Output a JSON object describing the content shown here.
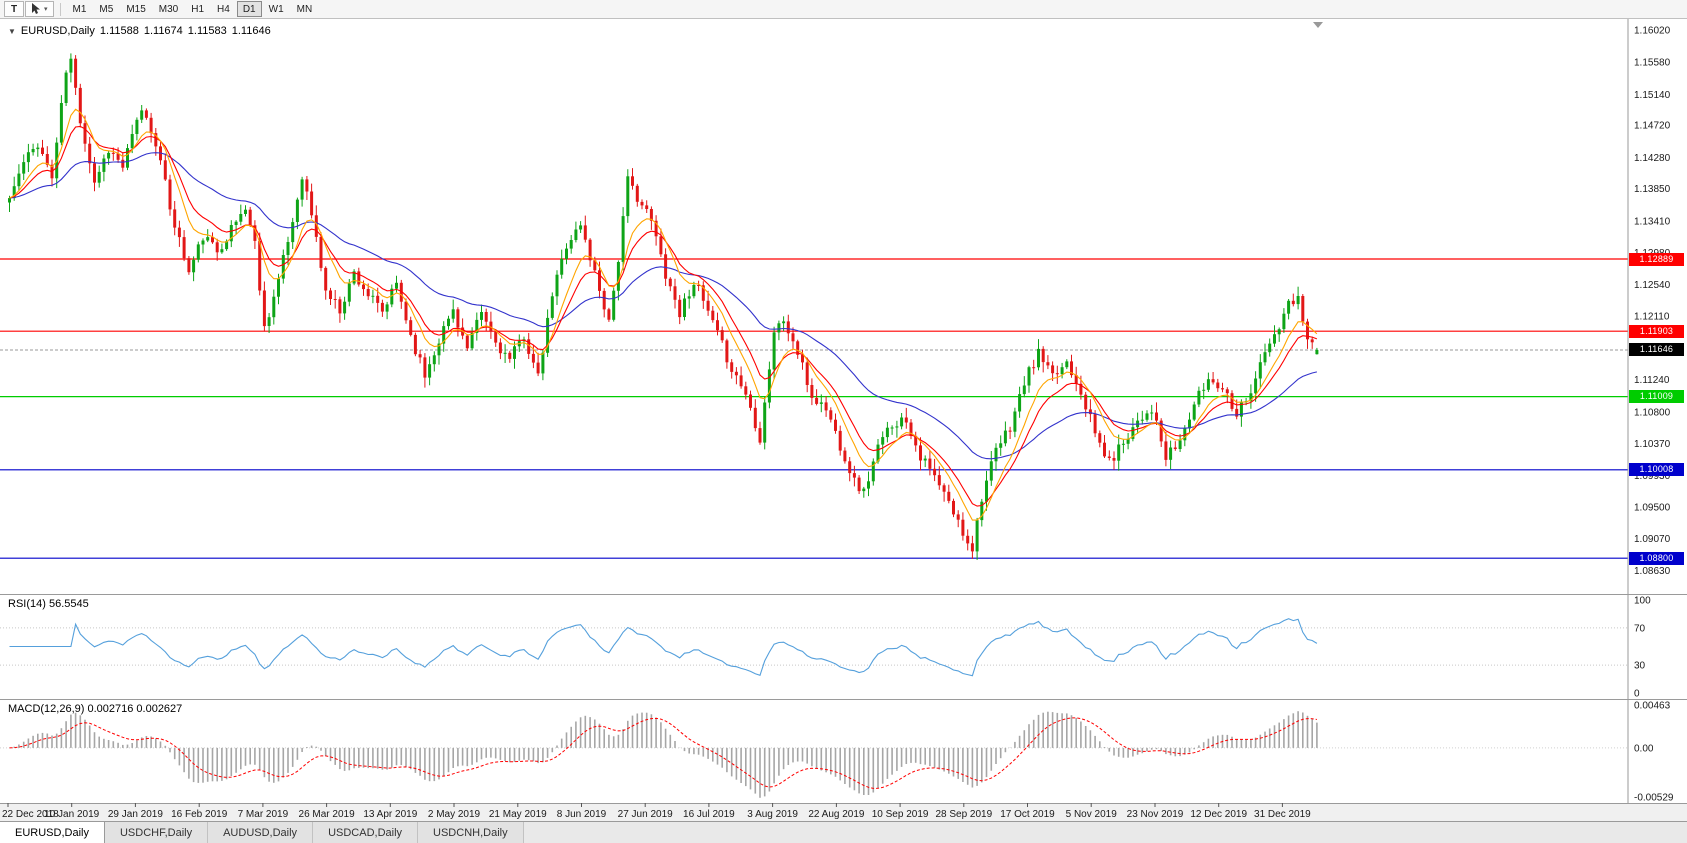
{
  "toolbar": {
    "text_tool": "T",
    "cursor_tool_caret": "▾",
    "timeframes": [
      "M1",
      "M5",
      "M15",
      "M30",
      "H1",
      "H4",
      "D1",
      "W1",
      "MN"
    ],
    "active_timeframe": "D1"
  },
  "chart": {
    "collapse_caret": "▼",
    "title": "EURUSD,Daily",
    "open": "1.11588",
    "high": "1.11674",
    "low": "1.11583",
    "close": "1.11646"
  },
  "rsi_panel": {
    "label": "RSI(14) 56.5545"
  },
  "macd_panel": {
    "label": "MACD(12,26,9) 0.002716 0.002627"
  },
  "chart_data": {
    "type": "candlestick",
    "symbol": "EURUSD",
    "period": "Daily",
    "bars_total": 278,
    "noise_seed": 11,
    "close_noise": 0.0008,
    "wick_noise": 0.0012,
    "candle_up_color": "#0ea417",
    "candle_down_color": "#e21717",
    "close_anchors": [
      [
        0,
        1.1372
      ],
      [
        3,
        1.142
      ],
      [
        6,
        1.1448
      ],
      [
        9,
        1.14
      ],
      [
        12,
        1.1545
      ],
      [
        13,
        1.156
      ],
      [
        15,
        1.148
      ],
      [
        18,
        1.1395
      ],
      [
        21,
        1.144
      ],
      [
        24,
        1.1415
      ],
      [
        28,
        1.1495
      ],
      [
        31,
        1.145
      ],
      [
        34,
        1.136
      ],
      [
        38,
        1.127
      ],
      [
        41,
        1.132
      ],
      [
        44,
        1.13
      ],
      [
        47,
        1.133
      ],
      [
        50,
        1.136
      ],
      [
        52,
        1.131
      ],
      [
        54,
        1.1195
      ],
      [
        57,
        1.126
      ],
      [
        60,
        1.134
      ],
      [
        62,
        1.1405
      ],
      [
        64,
        1.135
      ],
      [
        67,
        1.1245
      ],
      [
        70,
        1.122
      ],
      [
        73,
        1.127
      ],
      [
        76,
        1.124
      ],
      [
        79,
        1.1215
      ],
      [
        82,
        1.1255
      ],
      [
        85,
        1.1185
      ],
      [
        88,
        1.113
      ],
      [
        91,
        1.118
      ],
      [
        94,
        1.122
      ],
      [
        97,
        1.1165
      ],
      [
        100,
        1.1215
      ],
      [
        103,
        1.1175
      ],
      [
        106,
        1.115
      ],
      [
        109,
        1.1185
      ],
      [
        112,
        1.1125
      ],
      [
        115,
        1.124
      ],
      [
        118,
        1.131
      ],
      [
        121,
        1.1335
      ],
      [
        124,
        1.127
      ],
      [
        127,
        1.1205
      ],
      [
        129,
        1.129
      ],
      [
        131,
        1.1395
      ],
      [
        133,
        1.1375
      ],
      [
        136,
        1.134
      ],
      [
        139,
        1.127
      ],
      [
        142,
        1.1215
      ],
      [
        145,
        1.126
      ],
      [
        148,
        1.1215
      ],
      [
        151,
        1.117
      ],
      [
        153,
        1.114
      ],
      [
        156,
        1.1105
      ],
      [
        159,
        1.1045
      ],
      [
        162,
        1.119
      ],
      [
        164,
        1.1205
      ],
      [
        167,
        1.116
      ],
      [
        170,
        1.11
      ],
      [
        173,
        1.1085
      ],
      [
        176,
        1.1035
      ],
      [
        179,
        1.0985
      ],
      [
        181,
        1.097
      ],
      [
        184,
        1.103
      ],
      [
        187,
        1.1065
      ],
      [
        190,
        1.107
      ],
      [
        193,
        1.102
      ],
      [
        196,
        1.099
      ],
      [
        199,
        1.0955
      ],
      [
        202,
        1.0915
      ],
      [
        204,
        1.0895
      ],
      [
        206,
        1.0965
      ],
      [
        209,
        1.1025
      ],
      [
        212,
        1.106
      ],
      [
        215,
        1.112
      ],
      [
        218,
        1.116
      ],
      [
        221,
        1.1125
      ],
      [
        224,
        1.115
      ],
      [
        227,
        1.111
      ],
      [
        230,
        1.105
      ],
      [
        233,
        1.101
      ],
      [
        236,
        1.104
      ],
      [
        239,
        1.107
      ],
      [
        242,
        1.1085
      ],
      [
        245,
        1.1015
      ],
      [
        248,
        1.104
      ],
      [
        251,
        1.109
      ],
      [
        254,
        1.1125
      ],
      [
        257,
        1.1115
      ],
      [
        260,
        1.108
      ],
      [
        263,
        1.111
      ],
      [
        266,
        1.116
      ],
      [
        269,
        1.1195
      ],
      [
        271,
        1.1225
      ],
      [
        273,
        1.1235
      ],
      [
        275,
        1.1185
      ],
      [
        277,
        1.11646
      ]
    ],
    "spike_high": {
      "bar": 13,
      "price": 1.157
    },
    "spike_low": {
      "bar": 204,
      "price": 1.0879
    },
    "last_bar": {
      "open": 1.11588,
      "high": 1.11674,
      "low": 1.11583,
      "close": 1.11646
    },
    "moving_averages": [
      {
        "name": "slow-blue",
        "period": 40,
        "color": "#3333cc"
      },
      {
        "name": "medium-red",
        "period": 13,
        "color": "#ff0000"
      },
      {
        "name": "fast-orange",
        "period": 8,
        "color": "#ffa500"
      }
    ],
    "levels": [
      {
        "price": 1.12889,
        "label": "1.12889",
        "color": "#ff0000"
      },
      {
        "price": 1.11903,
        "label": "1.11903",
        "color": "#ff0000"
      },
      {
        "price": 1.11009,
        "label": "1.11009",
        "color": "#00cc00"
      },
      {
        "price": 1.10008,
        "label": "1.10008",
        "color": "#0000cc"
      },
      {
        "price": 1.088,
        "label": "1.08800",
        "color": "#0000cc"
      }
    ],
    "current_price": {
      "value": 1.11646,
      "label": "1.11646",
      "tag_bg": "#000000"
    },
    "price_axis": {
      "top_value": 1.1602,
      "bottom_value": 1.0863,
      "labels": [
        "1.16020",
        "1.15580",
        "1.15140",
        "1.14720",
        "1.14280",
        "1.13850",
        "1.13410",
        "1.12980",
        "1.12540",
        "1.12110",
        "1.11670",
        "1.11240",
        "1.10800",
        "1.10370",
        "1.09930",
        "1.09500",
        "1.09070",
        "1.08630"
      ]
    },
    "date_axis": [
      "22 Dec 2018",
      "10 Jan 2019",
      "29 Jan 2019",
      "16 Feb 2019",
      "7 Mar 2019",
      "26 Mar 2019",
      "13 Apr 2019",
      "2 May 2019",
      "21 May 2019",
      "8 Jun 2019",
      "27 Jun 2019",
      "16 Jul 2019",
      "3 Aug 2019",
      "22 Aug 2019",
      "10 Sep 2019",
      "28 Sep 2019",
      "17 Oct 2019",
      "5 Nov 2019",
      "23 Nov 2019",
      "12 Dec 2019",
      "31 Dec 2019"
    ],
    "rsi": {
      "period": 14,
      "value_label": "56.5545",
      "color": "#55a0dc",
      "scale_labels": [
        "100",
        "70",
        "30",
        "0"
      ],
      "guide_levels": [
        70,
        30
      ]
    },
    "macd": {
      "fast": 12,
      "slow": 26,
      "signal": 9,
      "value": "0.002716",
      "signal_value": "0.002627",
      "scale_labels": [
        "0.00463",
        "0.00",
        "-0.00529"
      ],
      "scale_top": 0.00463,
      "scale_bottom": -0.00529,
      "hist_color": "#a6a6a6",
      "signal_color": "#ff0000"
    }
  },
  "tabs": [
    {
      "label": "EURUSD,Daily",
      "active": true
    },
    {
      "label": "USDCHF,Daily",
      "active": false
    },
    {
      "label": "AUDUSD,Daily",
      "active": false
    },
    {
      "label": "USDCAD,Daily",
      "active": false
    },
    {
      "label": "USDCNH,Daily",
      "active": false
    }
  ]
}
